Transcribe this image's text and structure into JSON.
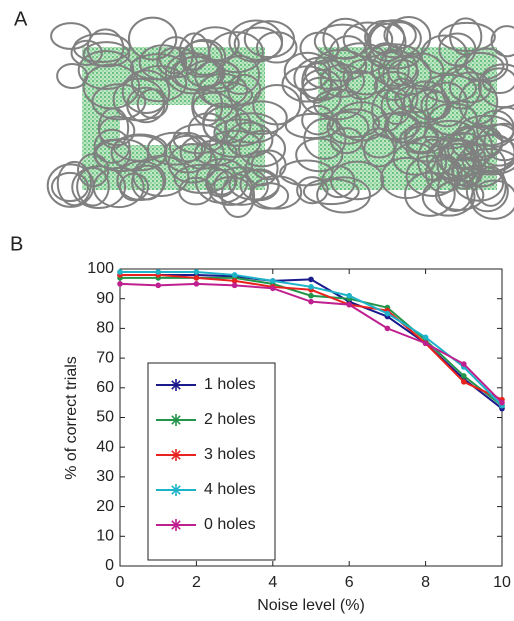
{
  "panel_labels": [
    "A",
    "B"
  ],
  "chart_data": {
    "type": "line",
    "x_label": "Noise level (%)",
    "y_label": "% of correct trials",
    "x": [
      0,
      1,
      2,
      3,
      4,
      5,
      6,
      7,
      8,
      9,
      10
    ],
    "xlim": [
      0,
      10
    ],
    "xticks": [
      0,
      2,
      4,
      6,
      8,
      10
    ],
    "ylim": [
      0,
      100
    ],
    "yticks": [
      0,
      10,
      20,
      30,
      40,
      50,
      60,
      70,
      80,
      90,
      100
    ],
    "legend": "lower left",
    "grid": false,
    "series": [
      {
        "name": "1 holes",
        "color": "#1a1a8c",
        "values": [
          98,
          98,
          98,
          97.5,
          96,
          96.5,
          89,
          84,
          75,
          63,
          53
        ]
      },
      {
        "name": "2 holes",
        "color": "#22954a",
        "values": [
          97,
          97,
          97,
          97,
          95,
          91,
          90,
          87,
          76,
          64,
          54
        ]
      },
      {
        "name": "3 holes",
        "color": "#e8231f",
        "values": [
          98,
          98,
          97,
          96,
          94,
          93,
          88,
          86,
          75,
          62,
          56
        ]
      },
      {
        "name": "4 holes",
        "color": "#1fb3c9",
        "values": [
          99,
          99,
          99,
          98,
          96,
          94,
          91,
          85,
          77,
          67,
          54
        ]
      },
      {
        "name": "0 holes",
        "color": "#c0208f",
        "values": [
          95,
          94.5,
          95,
          94.5,
          93.5,
          89,
          88,
          80,
          75,
          68,
          55
        ]
      }
    ]
  }
}
